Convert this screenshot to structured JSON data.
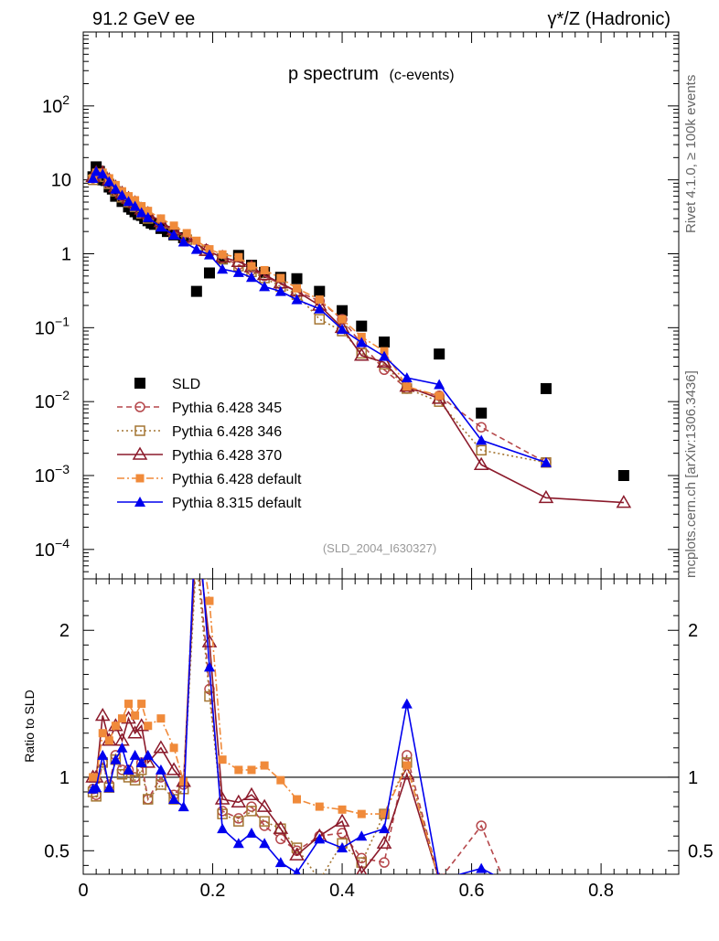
{
  "header": {
    "left": "91.2 GeV ee",
    "right": "γ*/Z (Hadronic)",
    "side_top": "Rivet 4.1.0, ≥ 100k events",
    "side_bottom": "mcplots.cern.ch [arXiv:1306.3436]"
  },
  "chart_data": [
    {
      "type": "scatter",
      "panel": "main",
      "title": "p spectrum",
      "subtitle": "(c-events)",
      "watermark": "(SLD_2004_I630327)",
      "xlabel": "",
      "ylabel": "",
      "xlim": [
        0,
        0.92
      ],
      "ylim": [
        4e-05,
        1000
      ],
      "yscale": "log",
      "y_ticks": [
        {
          "value": 0.0001,
          "base": "10",
          "exp": "−4"
        },
        {
          "value": 0.001,
          "base": "10",
          "exp": "−3"
        },
        {
          "value": 0.01,
          "base": "10",
          "exp": "−2"
        },
        {
          "value": 0.1,
          "base": "10",
          "exp": "−1"
        },
        {
          "value": 1,
          "base": "1",
          "exp": ""
        },
        {
          "value": 10,
          "base": "10",
          "exp": ""
        },
        {
          "value": 100,
          "base": "10",
          "exp": "2"
        }
      ],
      "series": [
        {
          "name": "SLD",
          "color": "#000000",
          "marker": "square-filled",
          "line": "none",
          "x": [
            0.015,
            0.02,
            0.025,
            0.03,
            0.035,
            0.04,
            0.045,
            0.05,
            0.055,
            0.06,
            0.065,
            0.07,
            0.075,
            0.08,
            0.085,
            0.09,
            0.095,
            0.1,
            0.105,
            0.11,
            0.12,
            0.13,
            0.14,
            0.155,
            0.175,
            0.195,
            0.215,
            0.24,
            0.26,
            0.28,
            0.305,
            0.33,
            0.365,
            0.4,
            0.43,
            0.465,
            0.55,
            0.615,
            0.715,
            0.835
          ],
          "y": [
            11,
            15,
            13,
            10,
            9.8,
            8,
            7.5,
            6,
            6.4,
            5.1,
            5.3,
            4.3,
            4.0,
            3.7,
            3.4,
            3.3,
            3.0,
            2.8,
            2.6,
            2.5,
            2.2,
            2.0,
            1.8,
            1.65,
            0.31,
            0.55,
            0.85,
            0.95,
            0.7,
            0.56,
            0.48,
            0.46,
            0.31,
            0.17,
            0.105,
            0.064,
            0.044,
            0.007,
            0.015,
            0.001
          ]
        },
        {
          "name": "Pythia 6.428 345",
          "color": "#b5474b",
          "marker": "circle-open",
          "line": "dashed",
          "x": [
            0.015,
            0.02,
            0.03,
            0.04,
            0.05,
            0.06,
            0.07,
            0.08,
            0.09,
            0.1,
            0.12,
            0.14,
            0.16,
            0.19,
            0.215,
            0.24,
            0.26,
            0.28,
            0.305,
            0.33,
            0.365,
            0.4,
            0.43,
            0.465,
            0.5,
            0.55,
            0.615,
            0.715
          ],
          "y": [
            10.5,
            11.5,
            11,
            9,
            7.2,
            6,
            5.1,
            4.4,
            3.6,
            3.2,
            2.5,
            2.0,
            1.6,
            1.15,
            0.88,
            0.71,
            0.6,
            0.5,
            0.39,
            0.31,
            0.23,
            0.13,
            0.06,
            0.027,
            0.015,
            0.012,
            0.0045,
            0.0015
          ]
        },
        {
          "name": "Pythia 6.428 346",
          "color": "#a47532",
          "marker": "square-open",
          "line": "dotted",
          "x": [
            0.015,
            0.02,
            0.03,
            0.04,
            0.05,
            0.06,
            0.07,
            0.08,
            0.09,
            0.1,
            0.12,
            0.14,
            0.16,
            0.19,
            0.215,
            0.24,
            0.26,
            0.28,
            0.305,
            0.33,
            0.365,
            0.4,
            0.43,
            0.465,
            0.5,
            0.55,
            0.615,
            0.715
          ],
          "y": [
            10,
            11,
            11,
            8.8,
            7,
            5.8,
            5.0,
            4.3,
            3.5,
            3.0,
            2.4,
            1.95,
            1.55,
            1.1,
            0.85,
            0.68,
            0.57,
            0.47,
            0.36,
            0.28,
            0.13,
            0.09,
            0.045,
            0.032,
            0.015,
            0.01,
            0.0022,
            0.0015
          ]
        },
        {
          "name": "Pythia 6.428 370",
          "color": "#8b1a2b",
          "marker": "triangle-open",
          "line": "solid",
          "x": [
            0.015,
            0.02,
            0.03,
            0.04,
            0.05,
            0.06,
            0.07,
            0.08,
            0.09,
            0.1,
            0.12,
            0.14,
            0.16,
            0.19,
            0.215,
            0.24,
            0.26,
            0.28,
            0.305,
            0.33,
            0.365,
            0.4,
            0.43,
            0.465,
            0.5,
            0.55,
            0.615,
            0.715,
            0.835
          ],
          "y": [
            11,
            12.5,
            12.5,
            10,
            8,
            6.6,
            5.6,
            4.9,
            4.0,
            3.5,
            2.7,
            2.1,
            1.7,
            1.1,
            0.9,
            0.78,
            0.66,
            0.52,
            0.4,
            0.31,
            0.2,
            0.1,
            0.042,
            0.034,
            0.016,
            0.011,
            0.0014,
            0.0005,
            0.00043
          ]
        },
        {
          "name": "Pythia 6.428 default",
          "color": "#f08a3a",
          "marker": "square-filled-small",
          "line": "dashdot",
          "x": [
            0.015,
            0.02,
            0.03,
            0.04,
            0.05,
            0.06,
            0.07,
            0.08,
            0.09,
            0.1,
            0.12,
            0.14,
            0.16,
            0.175,
            0.195,
            0.215,
            0.24,
            0.26,
            0.28,
            0.305,
            0.33,
            0.365,
            0.4,
            0.43,
            0.465,
            0.5,
            0.55
          ],
          "y": [
            10.5,
            12.5,
            12.5,
            10.5,
            8.5,
            7,
            6,
            5.3,
            4.4,
            3.8,
            3.0,
            2.4,
            1.9,
            1.5,
            1.15,
            0.98,
            0.9,
            0.68,
            0.6,
            0.47,
            0.34,
            0.24,
            0.13,
            0.075,
            0.048,
            0.016,
            0.012
          ]
        },
        {
          "name": "Pythia 8.315 default",
          "color": "#0000ee",
          "marker": "triangle-filled",
          "line": "solid",
          "x": [
            0.015,
            0.02,
            0.03,
            0.04,
            0.05,
            0.06,
            0.07,
            0.08,
            0.09,
            0.1,
            0.12,
            0.14,
            0.155,
            0.175,
            0.195,
            0.215,
            0.24,
            0.26,
            0.28,
            0.305,
            0.33,
            0.365,
            0.4,
            0.43,
            0.465,
            0.5,
            0.55,
            0.615,
            0.715
          ],
          "y": [
            10.5,
            13,
            12,
            9.5,
            7.5,
            6.2,
            5.1,
            4.4,
            3.6,
            3.1,
            2.3,
            1.8,
            1.45,
            1.15,
            0.97,
            0.62,
            0.56,
            0.48,
            0.36,
            0.31,
            0.24,
            0.18,
            0.095,
            0.063,
            0.041,
            0.021,
            0.017,
            0.003,
            0.0015
          ]
        }
      ],
      "legend": {
        "placement": "bottom-left"
      }
    },
    {
      "type": "line",
      "panel": "ratio",
      "ylabel": "Ratio to SLD",
      "xlim": [
        0,
        0.92
      ],
      "ylim": [
        0.34,
        2.35
      ],
      "reference": 1,
      "x_ticks": [
        "0",
        "0.2",
        "0.4",
        "0.6",
        "0.8"
      ],
      "x_tick_values": [
        0,
        0.2,
        0.4,
        0.6,
        0.8
      ],
      "y_ticks": [
        "0.5",
        "1",
        "2"
      ],
      "y_tick_values": [
        0.5,
        1,
        2
      ],
      "series": [
        {
          "name": "Pythia 6.428 345",
          "x": [
            0.015,
            0.02,
            0.03,
            0.04,
            0.05,
            0.06,
            0.07,
            0.08,
            0.09,
            0.1,
            0.12,
            0.14,
            0.155,
            0.175,
            0.195,
            0.215,
            0.24,
            0.26,
            0.28,
            0.305,
            0.33,
            0.365,
            0.4,
            0.43,
            0.465,
            0.5,
            0.55,
            0.615,
            0.65
          ],
          "y": [
            0.92,
            0.88,
            1.1,
            0.95,
            1.15,
            1.05,
            1.05,
            1.0,
            1.1,
            0.85,
            1.0,
            0.88,
            0.95,
            2.6,
            1.6,
            0.77,
            0.72,
            0.8,
            0.67,
            0.58,
            0.5,
            0.6,
            0.62,
            0.45,
            0.42,
            1.15,
            0.3,
            0.67,
            0.3
          ]
        },
        {
          "name": "Pythia 6.428 346",
          "x": [
            0.015,
            0.02,
            0.03,
            0.04,
            0.05,
            0.06,
            0.07,
            0.08,
            0.09,
            0.1,
            0.12,
            0.14,
            0.155,
            0.175,
            0.195,
            0.215,
            0.24,
            0.26,
            0.28,
            0.305,
            0.33,
            0.365,
            0.4,
            0.43,
            0.465,
            0.5,
            0.55
          ],
          "y": [
            0.9,
            0.87,
            1.1,
            0.93,
            1.12,
            1.02,
            1.0,
            0.98,
            1.05,
            0.85,
            0.95,
            0.85,
            0.92,
            2.5,
            1.55,
            0.75,
            0.7,
            0.77,
            0.7,
            0.65,
            0.52,
            0.3,
            0.55,
            0.42,
            0.75,
            1.1,
            0.3
          ]
        },
        {
          "name": "Pythia 6.428 370",
          "x": [
            0.015,
            0.02,
            0.03,
            0.04,
            0.05,
            0.06,
            0.07,
            0.08,
            0.09,
            0.1,
            0.12,
            0.14,
            0.155,
            0.175,
            0.195,
            0.215,
            0.24,
            0.26,
            0.28,
            0.305,
            0.33,
            0.365,
            0.4,
            0.43,
            0.465,
            0.5,
            0.55
          ],
          "y": [
            1.0,
            1.0,
            1.42,
            1.25,
            1.35,
            1.25,
            1.4,
            1.3,
            1.35,
            1.1,
            1.2,
            1.05,
            0.97,
            2.7,
            1.92,
            0.85,
            0.83,
            0.88,
            0.8,
            0.65,
            0.47,
            0.6,
            0.7,
            0.35,
            0.55,
            1.02,
            0.3
          ]
        },
        {
          "name": "Pythia 6.428 default",
          "x": [
            0.015,
            0.02,
            0.03,
            0.04,
            0.05,
            0.06,
            0.07,
            0.08,
            0.09,
            0.1,
            0.12,
            0.14,
            0.155,
            0.175,
            0.195,
            0.215,
            0.24,
            0.26,
            0.28,
            0.305,
            0.33,
            0.365,
            0.4,
            0.43,
            0.465,
            0.5,
            0.55
          ],
          "y": [
            1.0,
            1.0,
            1.3,
            1.25,
            1.35,
            1.4,
            1.5,
            1.42,
            1.5,
            1.35,
            1.4,
            1.2,
            0.97,
            2.8,
            2.2,
            1.12,
            1.05,
            1.05,
            1.08,
            0.98,
            0.85,
            0.8,
            0.78,
            0.75,
            0.75,
            1.08,
            0.3
          ]
        },
        {
          "name": "Pythia 8.315 default",
          "x": [
            0.015,
            0.02,
            0.03,
            0.04,
            0.05,
            0.06,
            0.07,
            0.08,
            0.09,
            0.1,
            0.12,
            0.14,
            0.155,
            0.175,
            0.195,
            0.215,
            0.24,
            0.26,
            0.28,
            0.305,
            0.33,
            0.365,
            0.4,
            0.43,
            0.465,
            0.5,
            0.55,
            0.615,
            0.65
          ],
          "y": [
            0.92,
            0.93,
            1.15,
            0.93,
            1.12,
            1.2,
            1.05,
            1.15,
            1.1,
            1.15,
            1.05,
            0.85,
            0.8,
            2.9,
            1.75,
            0.65,
            0.55,
            0.62,
            0.55,
            0.42,
            0.35,
            0.58,
            0.52,
            0.6,
            0.65,
            1.5,
            0.3,
            0.38,
            0.3
          ]
        }
      ]
    }
  ]
}
